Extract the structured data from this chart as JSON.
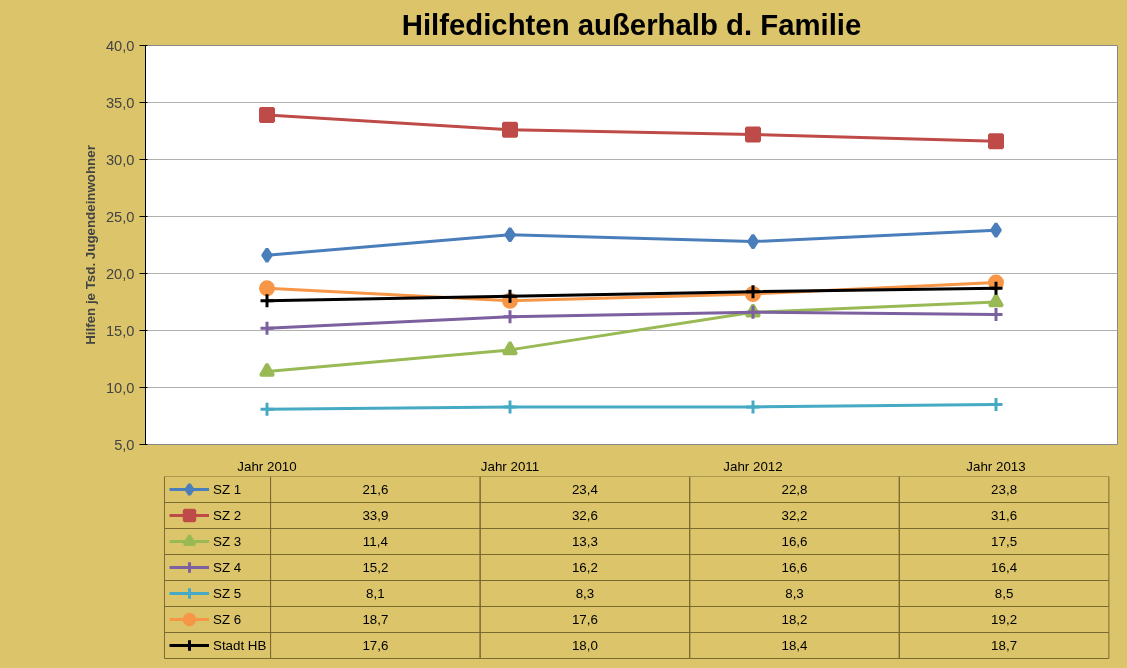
{
  "chart_data": {
    "type": "line",
    "title": "Hilfedichten außerhalb d. Familie",
    "ylabel": "Hilfen je Tsd. Jugendeinwohner",
    "categories": [
      "Jahr 2010",
      "Jahr 2011",
      "Jahr 2012",
      "Jahr 2013"
    ],
    "ylim": [
      5,
      40
    ],
    "yticks": [
      {
        "value": 5,
        "label": "5,0"
      },
      {
        "value": 10,
        "label": "10,0"
      },
      {
        "value": 15,
        "label": "15,0"
      },
      {
        "value": 20,
        "label": "20,0"
      },
      {
        "value": 25,
        "label": "25,0"
      },
      {
        "value": 30,
        "label": "30,0"
      },
      {
        "value": 35,
        "label": "35,0"
      },
      {
        "value": 40,
        "label": "40,0"
      }
    ],
    "grid": "y",
    "legend": "bottom",
    "line_style": "solid",
    "series": [
      {
        "name": "SZ 1",
        "color": "#4a7ebb",
        "marker": "diamond",
        "values": [
          21.6,
          23.4,
          22.8,
          23.8
        ],
        "value_labels": [
          "21,6",
          "23,4",
          "22,8",
          "23,8"
        ]
      },
      {
        "name": "SZ 2",
        "color": "#be4b48",
        "marker": "square",
        "values": [
          33.9,
          32.6,
          32.2,
          31.6
        ],
        "value_labels": [
          "33,9",
          "32,6",
          "32,2",
          "31,6"
        ]
      },
      {
        "name": "SZ 3",
        "color": "#98b954",
        "marker": "triangle",
        "values": [
          11.4,
          13.3,
          16.6,
          17.5
        ],
        "value_labels": [
          "11,4",
          "13,3",
          "16,6",
          "17,5"
        ]
      },
      {
        "name": "SZ 4",
        "color": "#7d60a0",
        "marker": "cross",
        "values": [
          15.2,
          16.2,
          16.6,
          16.4
        ],
        "value_labels": [
          "15,2",
          "16,2",
          "16,6",
          "16,4"
        ]
      },
      {
        "name": "SZ 5",
        "color": "#46aac5",
        "marker": "cross",
        "values": [
          8.1,
          8.3,
          8.3,
          8.5
        ],
        "value_labels": [
          "8,1",
          "8,3",
          "8,3",
          "8,5"
        ]
      },
      {
        "name": "SZ 6",
        "color": "#f79646",
        "marker": "circle",
        "values": [
          18.7,
          17.6,
          18.2,
          19.2
        ],
        "value_labels": [
          "18,7",
          "17,6",
          "18,2",
          "19,2"
        ]
      },
      {
        "name": "Stadt HB",
        "color": "#000000",
        "marker": "cross",
        "values": [
          17.6,
          18.0,
          18.4,
          18.7
        ],
        "value_labels": [
          "17,6",
          "18,0",
          "18,4",
          "18,7"
        ]
      }
    ]
  }
}
